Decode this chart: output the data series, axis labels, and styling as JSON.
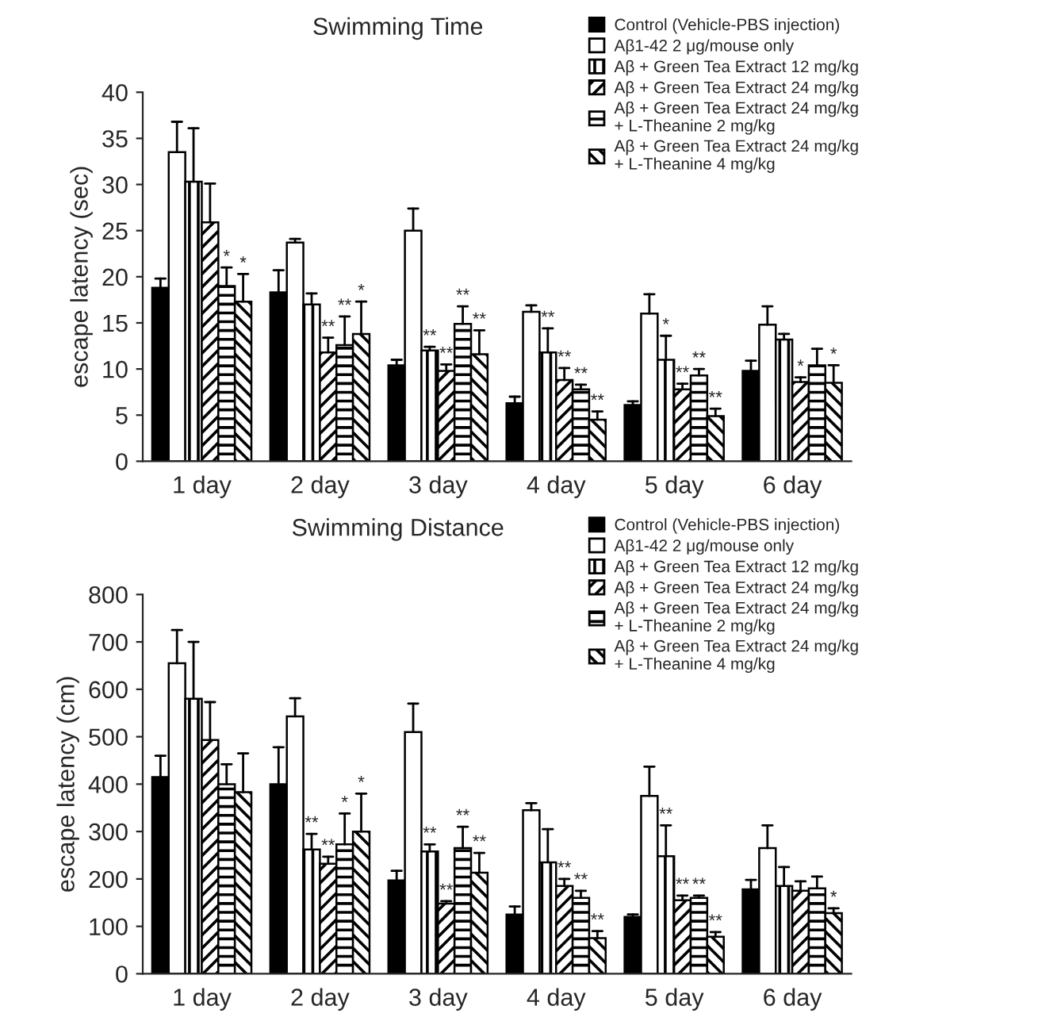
{
  "chart_data": [
    {
      "type": "bar",
      "title": "Swimming Time",
      "ylabel": "escape latency (sec)",
      "categories": [
        "1 day",
        "2 day",
        "3 day",
        "4 day",
        "5 day",
        "6 day"
      ],
      "ylim": [
        0,
        40
      ],
      "yticks": [
        0,
        5,
        10,
        15,
        20,
        25,
        30,
        35,
        40
      ],
      "legend": "top right",
      "series": [
        {
          "name": "Control (Vehicle-PBS injection)",
          "color": "#000000",
          "values": [
            18.8,
            18.3,
            10.4,
            6.3,
            6.1,
            9.8
          ],
          "errors": [
            [
              18.8,
              19.8
            ],
            [
              18.3,
              20.7
            ],
            [
              10.4,
              11.0
            ],
            [
              6.3,
              7.0
            ],
            [
              6.1,
              6.5
            ],
            [
              9.8,
              10.9
            ]
          ]
        },
        {
          "name": "Aβ1-42 2 μg/mouse only",
          "color": "#ffffff",
          "values": [
            33.5,
            23.7,
            25.0,
            16.2,
            16.0,
            14.8
          ],
          "errors": [
            [
              33.5,
              36.8
            ],
            [
              23.7,
              24.1
            ],
            [
              25.0,
              27.4
            ],
            [
              16.2,
              16.9
            ],
            [
              16.0,
              18.1
            ],
            [
              14.8,
              16.8
            ]
          ]
        },
        {
          "name": "Aβ + Green Tea Extract 12 mg/kg",
          "color": "#000000",
          "values": [
            30.3,
            17.0,
            12.0,
            11.8,
            11.0,
            13.2
          ],
          "errors": [
            [
              30.3,
              36.1
            ],
            [
              17.0,
              18.2
            ],
            [
              12.0,
              12.4
            ],
            [
              11.8,
              14.4
            ],
            [
              11.0,
              13.6
            ],
            [
              13.2,
              13.8
            ]
          ],
          "value_labels": [
            null,
            null,
            "**",
            "**",
            "*",
            null
          ]
        },
        {
          "name": "Aβ + Green Tea Extract 24 mg/kg",
          "color": "#000000",
          "values": [
            25.9,
            11.8,
            9.8,
            8.8,
            7.8,
            8.6
          ],
          "errors": [
            [
              25.9,
              30.1
            ],
            [
              11.8,
              13.4
            ],
            [
              9.8,
              10.5
            ],
            [
              8.8,
              10.1
            ],
            [
              7.8,
              8.4
            ],
            [
              8.6,
              9.1
            ]
          ],
          "value_labels": [
            null,
            "**",
            "**",
            "**",
            "**",
            "*"
          ]
        },
        {
          "name": "Aβ + Green Tea Extract 24 mg/kg\n+ L-Theanine 2 mg/kg",
          "color": "#000000",
          "values": [
            19.0,
            12.6,
            14.9,
            7.8,
            9.3,
            10.4
          ],
          "errors": [
            [
              19.0,
              21.0
            ],
            [
              12.6,
              15.7
            ],
            [
              14.9,
              16.8
            ],
            [
              7.8,
              8.3
            ],
            [
              9.3,
              10.0
            ],
            [
              10.4,
              12.2
            ]
          ],
          "value_labels": [
            "*",
            "**",
            "**",
            "**",
            "**",
            null
          ]
        },
        {
          "name": "Aβ + Green Tea Extract 24 mg/kg\n+ L-Theanine 4 mg/kg",
          "color": "#000000",
          "values": [
            17.3,
            13.8,
            11.6,
            4.5,
            4.9,
            8.5
          ],
          "errors": [
            [
              17.3,
              20.3
            ],
            [
              13.8,
              17.3
            ],
            [
              11.6,
              14.2
            ],
            [
              4.5,
              5.4
            ],
            [
              4.9,
              5.7
            ],
            [
              8.5,
              10.4
            ]
          ],
          "value_labels": [
            "*",
            "*",
            "**",
            "**",
            "**",
            "*"
          ]
        }
      ]
    },
    {
      "type": "bar",
      "title": "Swimming Distance",
      "ylabel": "escape latency (cm)",
      "categories": [
        "1 day",
        "2 day",
        "3 day",
        "4 day",
        "5 day",
        "6 day"
      ],
      "ylim": [
        0,
        800
      ],
      "yticks": [
        0,
        100,
        200,
        300,
        400,
        500,
        600,
        700,
        800
      ],
      "legend": "top right",
      "series": [
        {
          "name": "Control (Vehicle-PBS injection)",
          "color": "#000000",
          "values": [
            415,
            400,
            197,
            125,
            120,
            178
          ],
          "errors": [
            [
              415,
              460
            ],
            [
              400,
              478
            ],
            [
              197,
              217
            ],
            [
              125,
              142
            ],
            [
              120,
              125
            ],
            [
              178,
              198
            ]
          ]
        },
        {
          "name": "Aβ1-42 2 μg/mouse only",
          "color": "#ffffff",
          "values": [
            655,
            543,
            510,
            345,
            375,
            265
          ],
          "errors": [
            [
              655,
              725
            ],
            [
              543,
              581
            ],
            [
              510,
              570
            ],
            [
              345,
              360
            ],
            [
              375,
              437
            ],
            [
              265,
              313
            ]
          ]
        },
        {
          "name": "Aβ + Green Tea Extract 12 mg/kg",
          "color": "#000000",
          "values": [
            580,
            262,
            258,
            235,
            248,
            185
          ],
          "errors": [
            [
              580,
              700
            ],
            [
              262,
              295
            ],
            [
              258,
              273
            ],
            [
              235,
              305
            ],
            [
              248,
              313
            ],
            [
              185,
              225
            ]
          ],
          "value_labels": [
            null,
            "**",
            "**",
            null,
            "**",
            null
          ]
        },
        {
          "name": "Aβ + Green Tea Extract 24 mg/kg",
          "color": "#000000",
          "values": [
            493,
            232,
            148,
            185,
            155,
            175
          ],
          "errors": [
            [
              493,
              573
            ],
            [
              232,
              247
            ],
            [
              148,
              153
            ],
            [
              185,
              200
            ],
            [
              155,
              165
            ],
            [
              175,
              195
            ]
          ],
          "value_labels": [
            null,
            "**",
            "**",
            "**",
            "**",
            null
          ]
        },
        {
          "name": "Aβ + Green Tea Extract 24 mg/kg\n+ L-Theanine 2 mg/kg",
          "color": "#000000",
          "values": [
            400,
            273,
            265,
            160,
            160,
            180
          ],
          "errors": [
            [
              400,
              442
            ],
            [
              273,
              338
            ],
            [
              265,
              310
            ],
            [
              160,
              175
            ],
            [
              160,
              165
            ],
            [
              180,
              205
            ]
          ],
          "value_labels": [
            null,
            "*",
            "**",
            "**",
            "**",
            null
          ]
        },
        {
          "name": "Aβ + Green Tea Extract 24 mg/kg\n+ L-Theanine 4 mg/kg",
          "color": "#000000",
          "values": [
            383,
            300,
            213,
            75,
            78,
            128
          ],
          "errors": [
            [
              383,
              465
            ],
            [
              300,
              380
            ],
            [
              213,
              255
            ],
            [
              75,
              90
            ],
            [
              78,
              88
            ],
            [
              128,
              138
            ]
          ],
          "value_labels": [
            null,
            "*",
            "**",
            "**",
            "**",
            "*"
          ]
        }
      ]
    }
  ]
}
